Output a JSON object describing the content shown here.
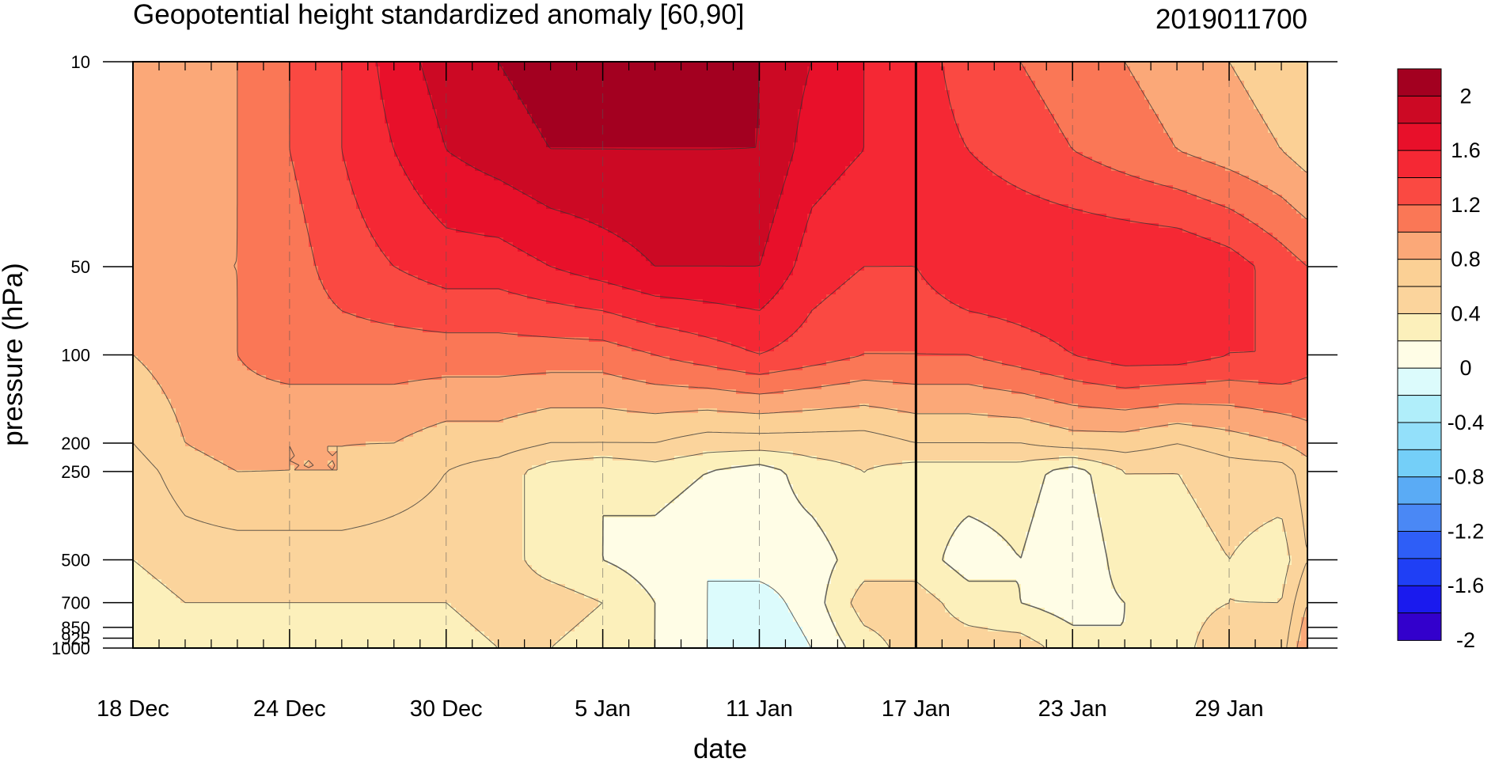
{
  "chart_data": {
    "type": "contour",
    "title": "Geopotential height standardized anomaly [60,90]",
    "date_label": "2019011700",
    "xlabel": "date",
    "ylabel": "pressure (hPa)",
    "x_ticks": [
      "18 Dec",
      "24 Dec",
      "30 Dec",
      "5 Jan",
      "11 Jan",
      "17 Jan",
      "23 Jan",
      "29 Jan"
    ],
    "x_range": [
      "18 Dec",
      "31 Jan"
    ],
    "y_ticks": [
      "10",
      "50",
      "100",
      "200",
      "250",
      "500",
      "700",
      "850",
      "925",
      "1000"
    ],
    "y_scale": "log",
    "y_range": [
      1000,
      10
    ],
    "vertical_marker": "17 Jan",
    "colorbar_labels": [
      "2",
      "1.6",
      "1.2",
      "0.8",
      "0.4",
      "0",
      "-0.4",
      "-0.8",
      "-1.2",
      "-1.6",
      "-2"
    ],
    "levels": [
      -2.2,
      -2.0,
      -1.8,
      -1.6,
      -1.4,
      -1.2,
      -1.0,
      -0.8,
      -0.6,
      -0.4,
      -0.2,
      0,
      0.2,
      0.4,
      0.6,
      0.8,
      1.0,
      1.2,
      1.4,
      1.6,
      1.8,
      2.0,
      2.2
    ],
    "colors": [
      "#3300cc",
      "#1a1aee",
      "#1f3ff5",
      "#2e5ef7",
      "#4a88f5",
      "#5aabf5",
      "#74cff8",
      "#93e0fa",
      "#b0eefa",
      "#dcfbfc",
      "#fffde6",
      "#fcf0bb",
      "#fbd49c",
      "#fbd095",
      "#fba878",
      "#fa7756",
      "#fa4942",
      "#f52834",
      "#e8102a",
      "#cc0924",
      "#a30020"
    ],
    "days": [
      0,
      2,
      4,
      6,
      8,
      10,
      12,
      14,
      16,
      18,
      20,
      22,
      24,
      26,
      28,
      30,
      32,
      34,
      36,
      38,
      40,
      42,
      44,
      45
    ],
    "pressures": [
      1000,
      700,
      500,
      250,
      200,
      100,
      50,
      20,
      10
    ],
    "anomaly": [
      [
        0.1,
        0.1,
        0.1,
        0.1,
        0.1,
        0.1,
        0.1,
        0.2,
        0.2,
        0.1,
        0.0,
        -0.2,
        -0.4,
        -0.2,
        0.1,
        0.3,
        0.3,
        0.3,
        0.1,
        0.0,
        0.1,
        0.4,
        0.3,
        0.8
      ],
      [
        0.1,
        0.2,
        0.2,
        0.2,
        0.2,
        0.2,
        0.2,
        0.3,
        0.3,
        0.2,
        0.0,
        -0.2,
        -0.3,
        -0.1,
        0.3,
        0.3,
        0.1,
        0.0,
        -0.1,
        0.0,
        0.1,
        0.2,
        0.2,
        0.6
      ],
      [
        0.2,
        0.3,
        0.3,
        0.3,
        0.3,
        0.3,
        0.3,
        0.3,
        0.1,
        0.0,
        -0.1,
        -0.2,
        -0.1,
        -0.1,
        0.1,
        0.1,
        -0.1,
        0.0,
        -0.2,
        0.1,
        0.1,
        0.2,
        0.1,
        0.4
      ],
      [
        0.3,
        0.5,
        0.6,
        0.6,
        0.6,
        0.5,
        0.4,
        0.3,
        0.1,
        0.0,
        0.1,
        0.0,
        -0.1,
        0.1,
        0.2,
        0.1,
        0.1,
        0.1,
        -0.1,
        0.2,
        0.2,
        0.3,
        0.3,
        0.5
      ],
      [
        0.4,
        0.6,
        0.7,
        0.6,
        0.6,
        0.6,
        0.5,
        0.5,
        0.4,
        0.4,
        0.4,
        0.3,
        0.3,
        0.3,
        0.3,
        0.4,
        0.4,
        0.4,
        0.5,
        0.5,
        0.4,
        0.5,
        0.6,
        0.7
      ],
      [
        0.6,
        0.7,
        0.8,
        0.9,
        0.9,
        0.9,
        0.9,
        0.9,
        0.9,
        0.9,
        1.0,
        1.1,
        1.2,
        1.1,
        1.0,
        1.0,
        1.0,
        1.1,
        1.2,
        1.3,
        1.3,
        1.2,
        1.2,
        1.1
      ],
      [
        0.7,
        0.8,
        0.8,
        0.9,
        1.1,
        1.2,
        1.3,
        1.3,
        1.4,
        1.5,
        1.6,
        1.6,
        1.6,
        1.3,
        1.2,
        1.2,
        1.4,
        1.4,
        1.4,
        1.4,
        1.4,
        1.3,
        1.1,
        1.0
      ],
      [
        0.6,
        0.7,
        0.8,
        1.0,
        1.2,
        1.4,
        1.6,
        1.7,
        1.8,
        1.8,
        1.8,
        1.8,
        1.8,
        1.5,
        1.4,
        1.3,
        1.2,
        1.1,
        1.0,
        0.9,
        0.8,
        0.7,
        0.6,
        0.5
      ],
      [
        0.6,
        0.7,
        0.8,
        1.0,
        1.2,
        1.5,
        1.7,
        1.8,
        1.9,
        1.9,
        1.9,
        1.9,
        1.8,
        1.6,
        1.4,
        1.3,
        1.1,
        1.0,
        0.9,
        0.8,
        0.7,
        0.6,
        0.5,
        0.4
      ]
    ]
  }
}
